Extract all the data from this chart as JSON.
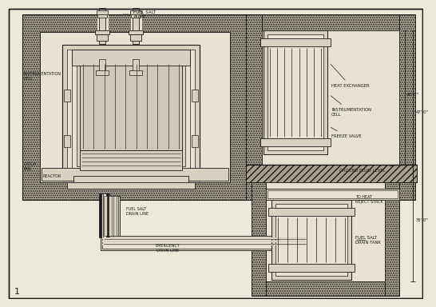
{
  "bg_color": "#ede8dc",
  "line_color": "#1a1a1a",
  "concrete_color": "#b8b0a0",
  "inner_color": "#e8e2d4",
  "vessel_color": "#d8d0c0",
  "labels": {
    "fuel_salt_pump": "FUEL SALT\nPUMP",
    "heat_exchanger": "HEAT EXCHANGER",
    "inst_cell_left": "INSTRUMENTATION\nCELL",
    "inst_cell_right": "INSTRUMENTATION\nCELL",
    "freeze_valve": "FREEZE VALVE",
    "ground_fluid_level": "GROUND FLUID LEVEL",
    "catch_pan": "CATCH\nPAN",
    "reactor": "REACTOR",
    "fuel_salt_drain_line": "FUEL SALT\nDRAIN LINE",
    "emergency_drain_line": "EMERGENCY\nDRAIN LINE",
    "to_heat_reject_stack": "TO HEAT\nREJECT STACK",
    "fuel_salt_drain_tank": "FUEL SALT\nDRAIN TANK",
    "dim_47": "47'-0\"",
    "dim_48": "48'-0\"",
    "dim_35": "35'-0\""
  },
  "figure_number": "1"
}
